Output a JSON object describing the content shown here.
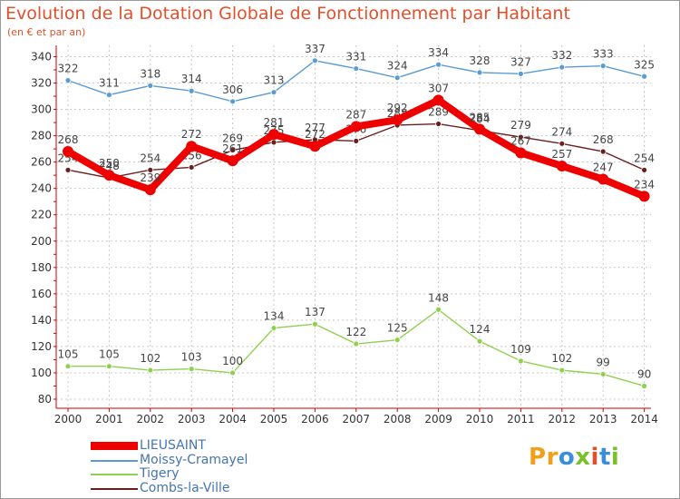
{
  "title": "Evolution de la Dotation Globale de Fonctionnement par Habitant",
  "subtitle": "(en € et par an)",
  "logo": {
    "letters": [
      "P",
      "r",
      "o",
      "x",
      "i",
      "t",
      "i"
    ],
    "colors": [
      "#f2a01c",
      "#f2a01c",
      "#3a8fd8",
      "#7bbf2a",
      "#e0502a",
      "#3a8fd8",
      "#7bbf2a"
    ]
  },
  "chart_data": {
    "type": "line",
    "x": [
      "2000",
      "2001",
      "2002",
      "2003",
      "2004",
      "2005",
      "2006",
      "2007",
      "2008",
      "2009",
      "2010",
      "2011",
      "2012",
      "2013",
      "2014"
    ],
    "ylim": [
      80,
      340
    ],
    "yticks": [
      80,
      100,
      120,
      140,
      160,
      180,
      200,
      220,
      240,
      260,
      280,
      300,
      320,
      340
    ],
    "grid": true,
    "legend": "bottom-left",
    "series": [
      {
        "name": "Combs-la-Ville",
        "color": "#6b1e1e",
        "values": [
          254,
          248,
          254,
          256,
          269,
          275,
          277,
          276,
          288,
          289,
          284,
          279,
          274,
          268,
          254
        ]
      },
      {
        "name": "Tigery",
        "color": "#8fd14f",
        "values": [
          105,
          105,
          102,
          103,
          100,
          134,
          137,
          122,
          125,
          148,
          124,
          109,
          102,
          99,
          90
        ]
      },
      {
        "name": "Moissy-Cramayel",
        "color": "#5a9bd4",
        "values": [
          322,
          311,
          318,
          314,
          306,
          313,
          337,
          331,
          324,
          334,
          328,
          327,
          332,
          333,
          325
        ]
      },
      {
        "name": "LIEUSAINT",
        "color": "#ee0000",
        "values": [
          268,
          250,
          239,
          272,
          261,
          281,
          272,
          287,
          292,
          307,
          285,
          267,
          257,
          247,
          234
        ]
      }
    ],
    "legend_order": [
      "LIEUSAINT",
      "Moissy-Cramayel",
      "Tigery",
      "Combs-la-Ville"
    ]
  }
}
